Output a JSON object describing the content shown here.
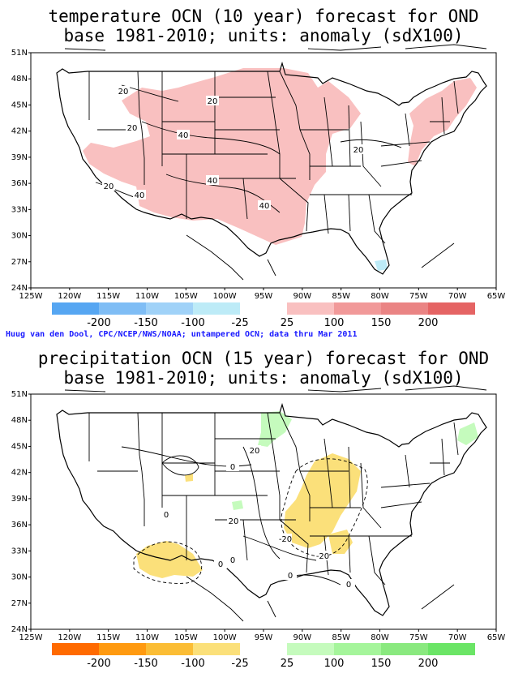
{
  "map1": {
    "title_line1": "temperature OCN (10 year) forecast for OND",
    "title_line2": "base 1981-2010; units: anomaly (sdX100)",
    "legend_neg": [
      "-200",
      "-150",
      "-100",
      "-25"
    ],
    "legend_pos": [
      "25",
      "100",
      "150",
      "200"
    ],
    "neg_colors": [
      "#56a6f2",
      "#7fbdf5",
      "#a0d2f8",
      "#bdebf7"
    ],
    "pos_colors": [
      "#f9c0c0",
      "#f19999",
      "#ea8484",
      "#e56464"
    ],
    "contour_labels": [
      "20",
      "20",
      "20",
      "20",
      "40",
      "40",
      "40",
      "40",
      "20"
    ]
  },
  "map2": {
    "title_line1": "precipitation OCN (15 year) forecast for OND",
    "title_line2": "base 1981-2010; units: anomaly (sdX100)",
    "legend_neg": [
      "-200",
      "-150",
      "-100",
      "-25"
    ],
    "legend_pos": [
      "25",
      "100",
      "150",
      "200"
    ],
    "neg_colors": [
      "#ff6a00",
      "#ff9a10",
      "#fbbd35",
      "#fbe07a"
    ],
    "pos_colors": [
      "#c5fbbd",
      "#a5f59b",
      "#8ae97f",
      "#6be566"
    ],
    "contour_labels": [
      "0",
      "20",
      "0",
      "20",
      "0",
      "-20",
      "-20",
      "0",
      "0",
      "0"
    ]
  },
  "credit": "Huug van den Dool, CPC/NCEP/NWS/NOAA; untampered OCN; data thru Mar 2011",
  "lat_labels": [
    "51N",
    "48N",
    "45N",
    "42N",
    "39N",
    "36N",
    "33N",
    "30N",
    "27N",
    "24N"
  ],
  "lon_labels": [
    "125W",
    "120W",
    "115W",
    "110W",
    "105W",
    "100W",
    "95W",
    "90W",
    "85W",
    "80W",
    "75W",
    "70W",
    "65W"
  ]
}
